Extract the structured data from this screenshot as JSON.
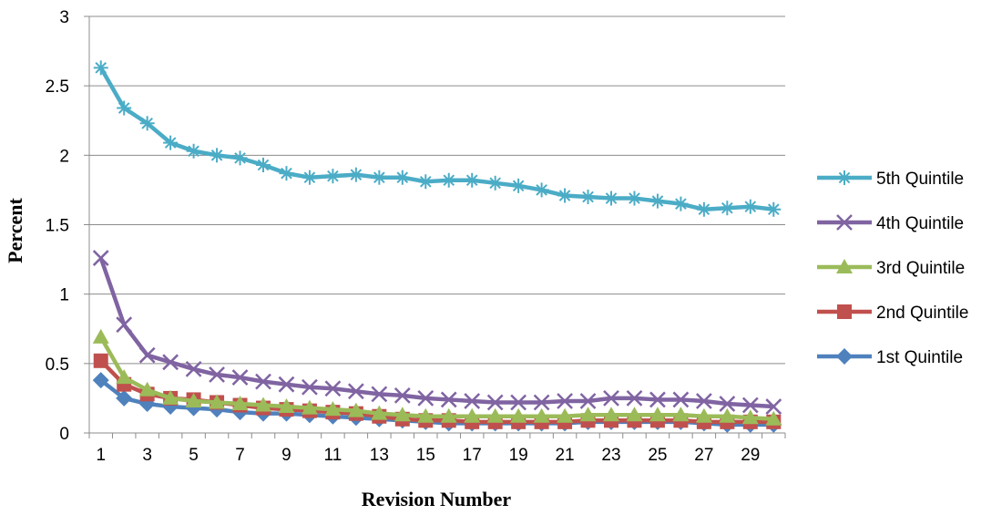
{
  "chart_data": {
    "type": "line",
    "title": "",
    "xlabel": "Revision Number",
    "ylabel": "Percent",
    "ylim": [
      0,
      3
    ],
    "xlim": [
      1,
      30
    ],
    "y_ticks": [
      "0",
      "0.5",
      "1",
      "1.5",
      "2",
      "2.5",
      "3"
    ],
    "x_ticks": [
      "1",
      "3",
      "5",
      "7",
      "9",
      "11",
      "13",
      "15",
      "17",
      "19",
      "21",
      "23",
      "25",
      "27",
      "29"
    ],
    "grid": "horizontal",
    "legend_position": "right",
    "x": [
      1,
      2,
      3,
      4,
      5,
      6,
      7,
      8,
      9,
      10,
      11,
      12,
      13,
      14,
      15,
      16,
      17,
      18,
      19,
      20,
      21,
      22,
      23,
      24,
      25,
      26,
      27,
      28,
      29,
      30
    ],
    "series": [
      {
        "name": "5th Quintile",
        "color": "#4bacc6",
        "marker": "asterisk",
        "values": [
          2.63,
          2.34,
          2.23,
          2.09,
          2.03,
          2.0,
          1.98,
          1.93,
          1.87,
          1.84,
          1.85,
          1.86,
          1.84,
          1.84,
          1.81,
          1.82,
          1.82,
          1.8,
          1.78,
          1.75,
          1.71,
          1.7,
          1.69,
          1.69,
          1.67,
          1.65,
          1.61,
          1.62,
          1.63,
          1.61
        ]
      },
      {
        "name": "4th Quintile",
        "color": "#8064a2",
        "marker": "x",
        "values": [
          1.26,
          0.78,
          0.56,
          0.51,
          0.46,
          0.42,
          0.4,
          0.37,
          0.35,
          0.33,
          0.32,
          0.3,
          0.28,
          0.27,
          0.25,
          0.24,
          0.23,
          0.22,
          0.22,
          0.22,
          0.23,
          0.23,
          0.25,
          0.25,
          0.24,
          0.24,
          0.23,
          0.21,
          0.2,
          0.19
        ]
      },
      {
        "name": "3rd Quintile",
        "color": "#9bbb59",
        "marker": "triangle",
        "values": [
          0.69,
          0.4,
          0.31,
          0.25,
          0.23,
          0.22,
          0.21,
          0.2,
          0.19,
          0.18,
          0.17,
          0.16,
          0.14,
          0.13,
          0.12,
          0.12,
          0.12,
          0.12,
          0.12,
          0.12,
          0.12,
          0.13,
          0.13,
          0.13,
          0.13,
          0.13,
          0.12,
          0.12,
          0.11,
          0.1
        ]
      },
      {
        "name": "2nd Quintile",
        "color": "#c0504d",
        "marker": "square",
        "values": [
          0.52,
          0.35,
          0.28,
          0.25,
          0.24,
          0.22,
          0.2,
          0.18,
          0.17,
          0.16,
          0.15,
          0.14,
          0.12,
          0.1,
          0.09,
          0.09,
          0.08,
          0.08,
          0.08,
          0.08,
          0.08,
          0.09,
          0.09,
          0.09,
          0.09,
          0.09,
          0.08,
          0.08,
          0.08,
          0.08
        ]
      },
      {
        "name": "1st Quintile",
        "color": "#4f81bd",
        "marker": "diamond",
        "values": [
          0.38,
          0.25,
          0.21,
          0.19,
          0.18,
          0.17,
          0.15,
          0.14,
          0.14,
          0.13,
          0.12,
          0.11,
          0.1,
          0.09,
          0.08,
          0.07,
          0.07,
          0.07,
          0.07,
          0.07,
          0.07,
          0.08,
          0.08,
          0.08,
          0.08,
          0.08,
          0.07,
          0.06,
          0.06,
          0.06
        ]
      }
    ]
  }
}
